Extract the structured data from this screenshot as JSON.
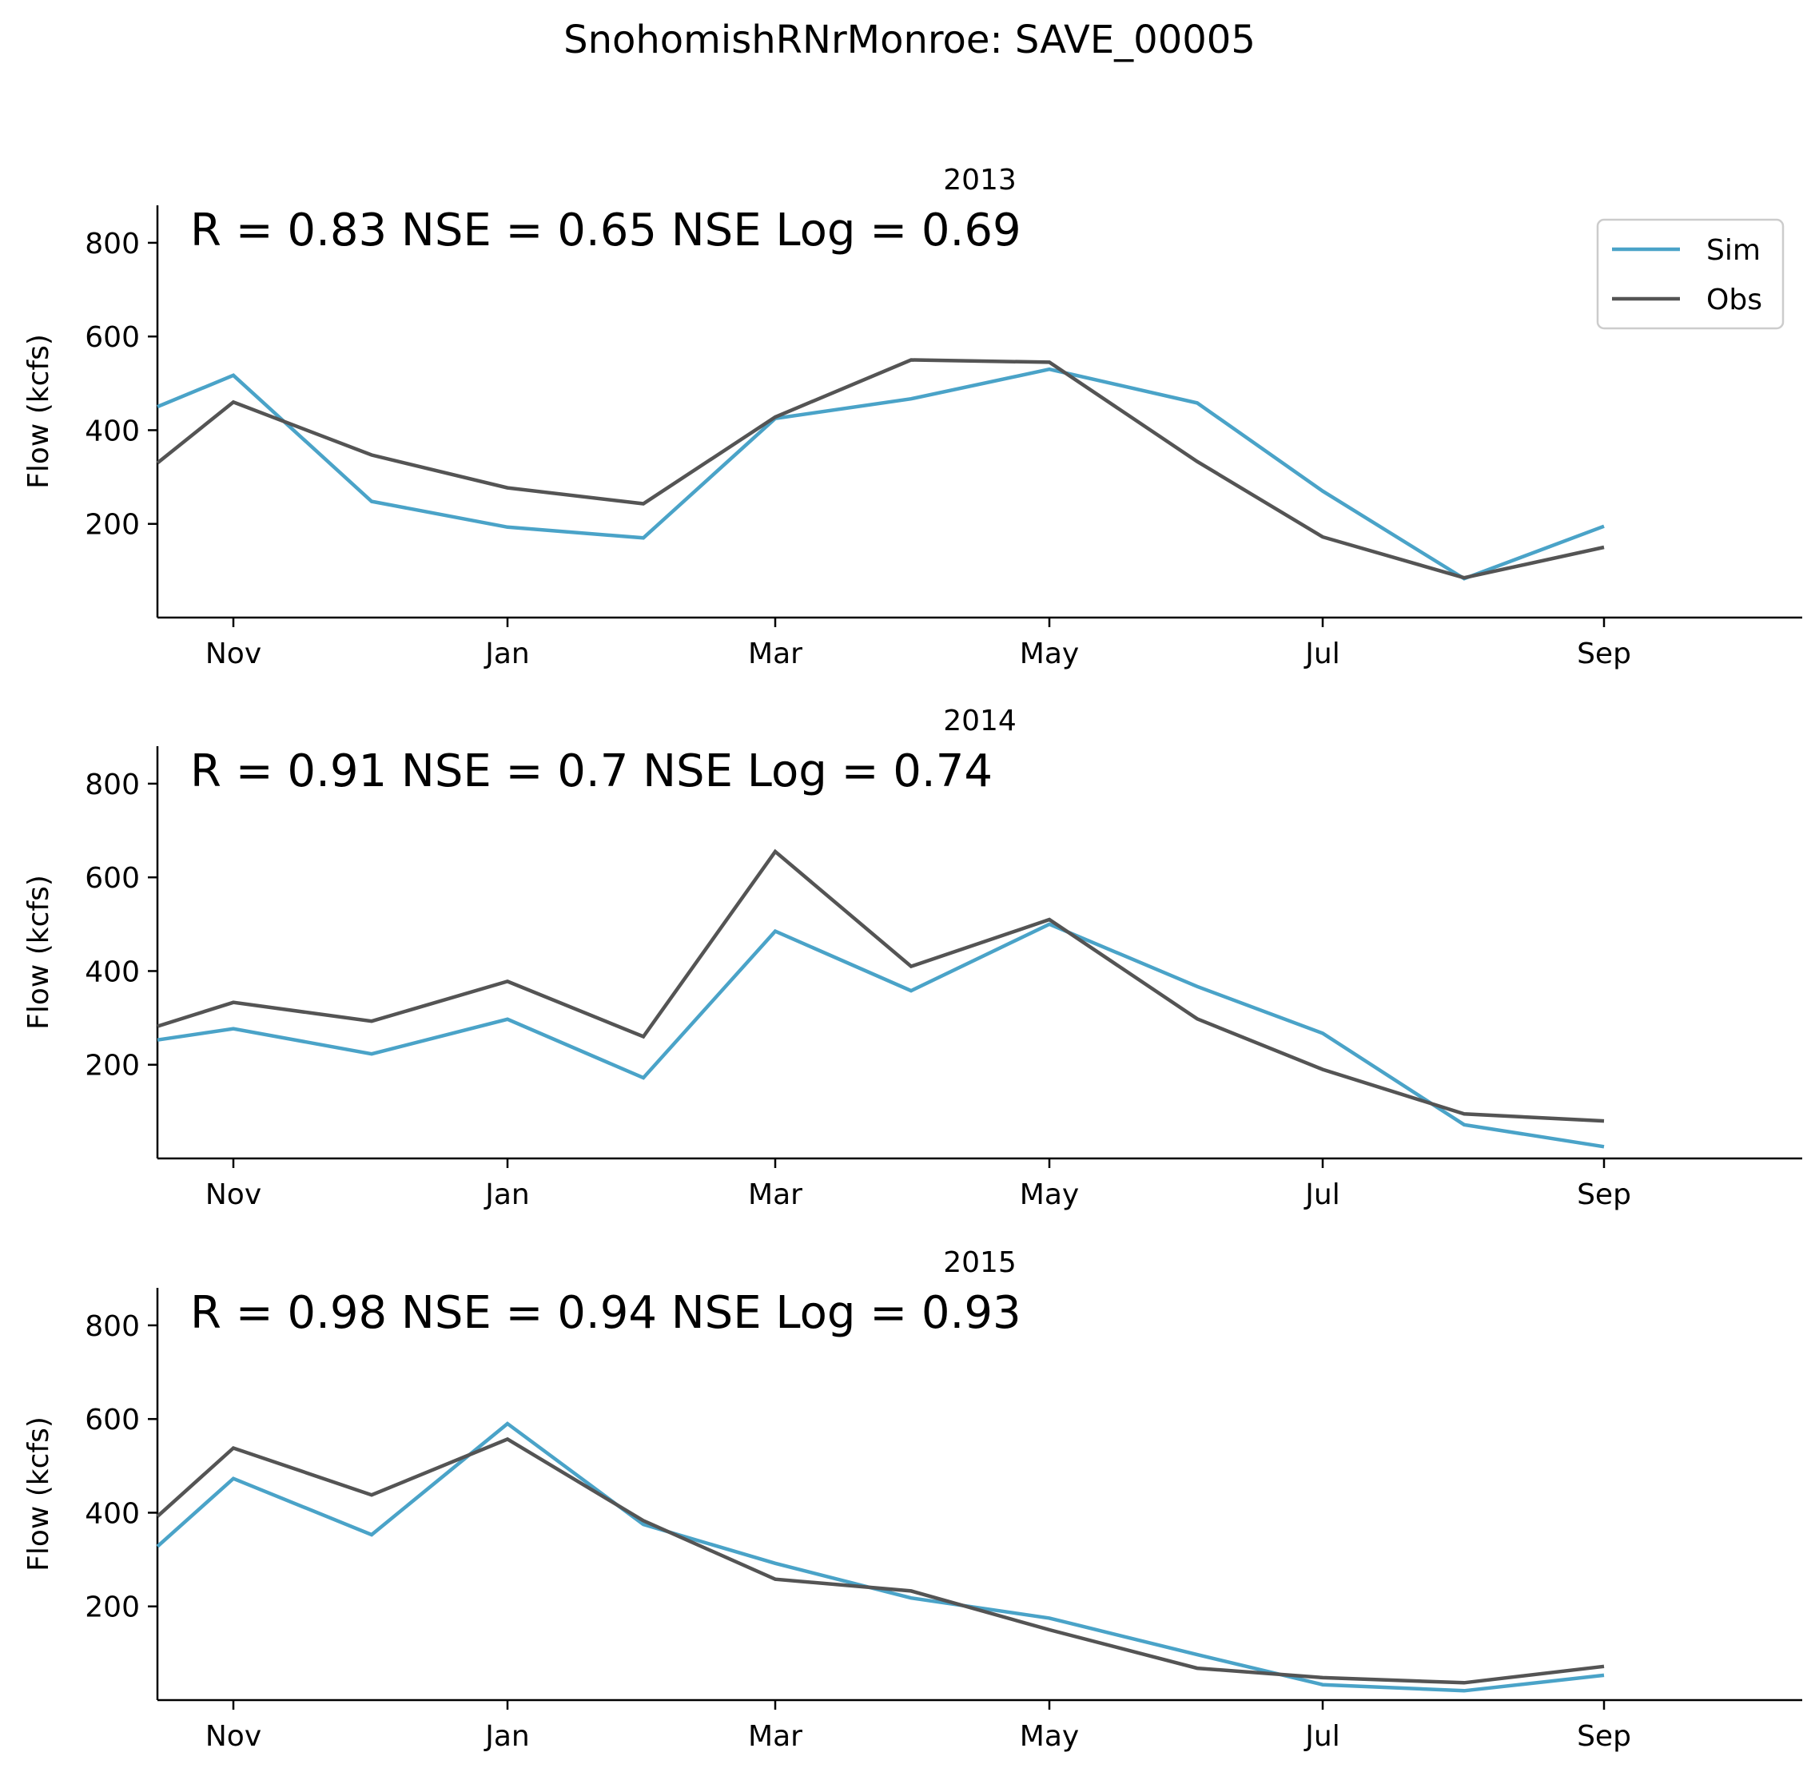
{
  "suptitle": "SnohomishRNrMonroe: SAVE_00005",
  "colors": {
    "sim": "#4aa3c8",
    "obs": "#545454"
  },
  "chart_data": [
    {
      "type": "line",
      "title": "2013",
      "stats": "R = 0.83  NSE = 0.65  NSE Log = 0.69",
      "ylabel": "Flow (kcfs)",
      "xlabel": "",
      "xtick_labels": [
        "Nov",
        "Jan",
        "Mar",
        "May",
        "Jul",
        "Sep"
      ],
      "yticks": [
        200,
        400,
        600,
        800
      ],
      "ylim": [
        0,
        880
      ],
      "x": [
        "Oct",
        "Nov",
        "Dec",
        "Jan",
        "Feb",
        "Mar",
        "Apr",
        "May",
        "Jun",
        "Jul",
        "Aug",
        "Sep"
      ],
      "series": [
        {
          "name": "Sim",
          "values": [
            450,
            517,
            248,
            193,
            170,
            425,
            467,
            530,
            458,
            270,
            83,
            195
          ]
        },
        {
          "name": "Obs",
          "values": [
            330,
            460,
            347,
            277,
            243,
            428,
            550,
            545,
            333,
            172,
            85,
            150
          ]
        }
      ],
      "legend": {
        "position": "top-right",
        "entries": [
          "Sim",
          "Obs"
        ]
      },
      "grid": false
    },
    {
      "type": "line",
      "title": "2014",
      "stats": "R = 0.91  NSE = 0.7  NSE Log = 0.74",
      "ylabel": "Flow (kcfs)",
      "xlabel": "",
      "xtick_labels": [
        "Nov",
        "Jan",
        "Mar",
        "May",
        "Jul",
        "Sep"
      ],
      "yticks": [
        200,
        400,
        600,
        800
      ],
      "ylim": [
        0,
        880
      ],
      "x": [
        "Oct",
        "Nov",
        "Dec",
        "Jan",
        "Feb",
        "Mar",
        "Apr",
        "May",
        "Jun",
        "Jul",
        "Aug",
        "Sep"
      ],
      "series": [
        {
          "name": "Sim",
          "values": [
            253,
            277,
            223,
            297,
            172,
            485,
            358,
            500,
            367,
            267,
            72,
            25
          ]
        },
        {
          "name": "Obs",
          "values": [
            282,
            333,
            293,
            378,
            260,
            655,
            410,
            510,
            298,
            190,
            95,
            80
          ]
        }
      ],
      "grid": false
    },
    {
      "type": "line",
      "title": "2015",
      "stats": "R = 0.98  NSE = 0.94  NSE Log = 0.93",
      "ylabel": "Flow (kcfs)",
      "xlabel": "",
      "xtick_labels": [
        "Nov",
        "Jan",
        "Mar",
        "May",
        "Jul",
        "Sep"
      ],
      "yticks": [
        200,
        400,
        600,
        800
      ],
      "ylim": [
        0,
        880
      ],
      "x": [
        "Oct",
        "Nov",
        "Dec",
        "Jan",
        "Feb",
        "Mar",
        "Apr",
        "May",
        "Jun",
        "Jul",
        "Aug",
        "Sep"
      ],
      "series": [
        {
          "name": "Sim",
          "values": [
            328,
            473,
            353,
            590,
            375,
            292,
            218,
            175,
            97,
            33,
            20,
            53
          ]
        },
        {
          "name": "Obs",
          "values": [
            392,
            538,
            438,
            557,
            383,
            258,
            233,
            150,
            68,
            48,
            37,
            72
          ]
        }
      ],
      "grid": false
    }
  ]
}
